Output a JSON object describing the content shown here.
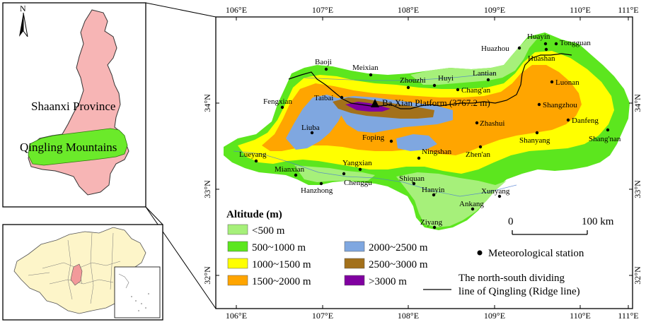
{
  "inset_top": {
    "north_label": "N",
    "province_label": "Shaanxi Province",
    "mountains_label": "Qingling Mountains"
  },
  "main_map": {
    "lon_ticks": [
      "106°E",
      "107°E",
      "108°E",
      "109°E",
      "110°E",
      "111°E"
    ],
    "lat_ticks": [
      "34°N",
      "33°N",
      "32°N"
    ],
    "peak_label": "Ba Xian Platform (3767.2 m)",
    "stations": [
      "Huayin",
      "Tongguan",
      "Huazhou",
      "Huashan",
      "Baoji",
      "Meixian",
      "Zhouzhi",
      "Huyi",
      "Lantian",
      "Chang'an",
      "Luonan",
      "Taibai",
      "Fengxian",
      "Shangzhou",
      "Danfeng",
      "Shang'nan",
      "Zhashui",
      "Liuba",
      "Foping",
      "Shanyang",
      "Ningshan",
      "Zhen'an",
      "Lueyang",
      "Yangxian",
      "Mianxian",
      "Chenggu",
      "Shiquan",
      "Hanzhong",
      "Hanyin",
      "Xunyang",
      "Ankang",
      "Ziyang"
    ]
  },
  "legend": {
    "title": "Altitude (m)",
    "classes": [
      {
        "label": "<500 m",
        "color": "#a6f07a"
      },
      {
        "label": "500~1000 m",
        "color": "#5ce61e"
      },
      {
        "label": "1000~1500 m",
        "color": "#ffff00"
      },
      {
        "label": "1500~2000 m",
        "color": "#ffa500"
      },
      {
        "label": "2000~2500 m",
        "color": "#7fa7e0"
      },
      {
        "label": "2500~3000 m",
        "color": "#a3711b"
      },
      {
        "label": ">3000 m",
        "color": "#8000a0"
      }
    ],
    "station_label": "Meteorological station",
    "ridge_label_line1": "The north-south dividing",
    "ridge_label_line2": "line of Qingling (Ridge line)"
  },
  "scale_bar": {
    "start": "0",
    "end": "100 km"
  }
}
